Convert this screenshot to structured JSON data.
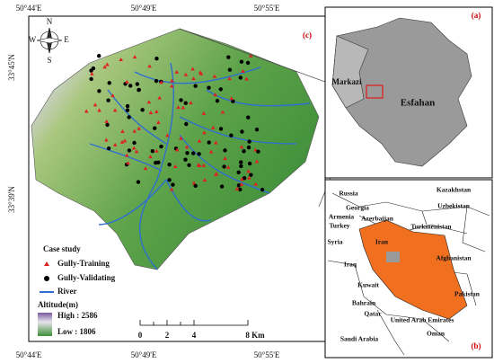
{
  "coordinates": {
    "top": [
      "50°44'E",
      "50°49'E",
      "50°55'E"
    ],
    "bottom": [
      "50°44'E",
      "50°49'E",
      "50°55'E"
    ],
    "left": [
      "33°45'N",
      "33°39'N"
    ]
  },
  "panels": [
    "(a)",
    "(b)",
    "(c)"
  ],
  "compass": {
    "n": "N",
    "s": "S",
    "e": "E",
    "w": "W"
  },
  "legend": {
    "title": "Case study",
    "training": "Gully-Training",
    "validating": "Gully-Validating",
    "river": "River",
    "altitude": "Altitude(m)",
    "high": "High : 2586",
    "low": "Low : 1806"
  },
  "scale": [
    "0",
    "2",
    "4",
    "8 Km"
  ],
  "province_map": [
    "Markazi",
    "Esfahan"
  ],
  "country_map": [
    "Russia",
    "Georgia",
    "Armenia",
    "Azerbaijan",
    "Turkey",
    "Kazakhstan",
    "Uzbekistan",
    "Turkmenistan",
    "Syria",
    "Iraq",
    "Iran",
    "Afghanistan",
    "Kuwait",
    "Bahrain",
    "Qatar",
    "Pakistan",
    "Saudi Arabia",
    "United Arab Emirates",
    "Oman"
  ]
}
